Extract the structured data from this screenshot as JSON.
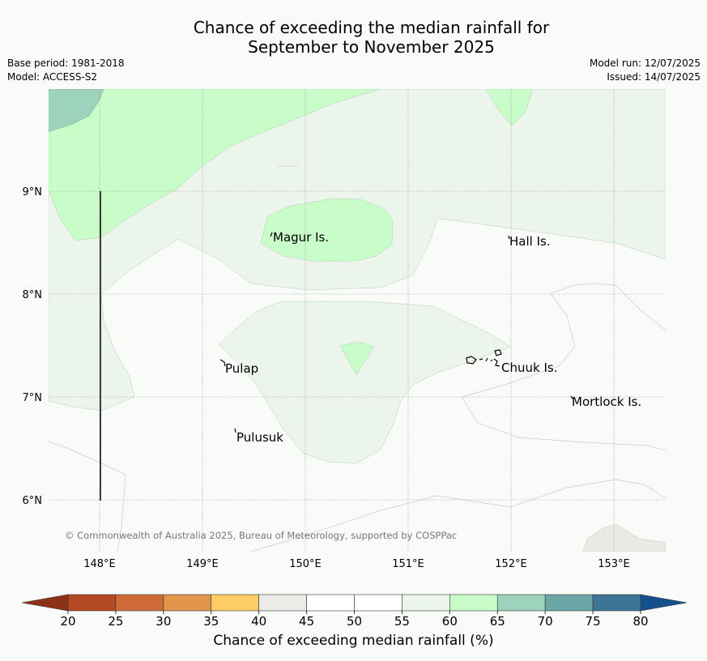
{
  "header": {
    "title_line1": "Chance of exceeding the median rainfall for",
    "title_line2": "September to November 2025",
    "base_period": "Base period: 1981-2018",
    "model": "Model: ACCESS-S2",
    "model_run": "Model run: 12/07/2025",
    "issued": "Issued: 14/07/2025"
  },
  "map": {
    "lon_labels": [
      "148°E",
      "149°E",
      "150°E",
      "151°E",
      "152°E",
      "153°E"
    ],
    "lat_labels": [
      "9°N",
      "8°N",
      "7°N",
      "6°N"
    ],
    "places": [
      {
        "name": "Magur Is."
      },
      {
        "name": "Hall Is."
      },
      {
        "name": "Pulap"
      },
      {
        "name": "Chuuk Is."
      },
      {
        "name": "Mortlock Is."
      },
      {
        "name": "Pulusuk"
      }
    ],
    "copyright": "© Commonwealth of Australia 2025, Bureau of Meteorology, supported by COSPPac"
  },
  "colorbar": {
    "title": "Chance of exceeding median rainfall (%)",
    "ticks": [
      "20",
      "25",
      "30",
      "35",
      "40",
      "45",
      "50",
      "55",
      "60",
      "65",
      "70",
      "75",
      "80"
    ],
    "colors": [
      "#b34a24",
      "#cf6b36",
      "#e2964c",
      "#fdcd66",
      "#ebebe8",
      "#ffffff",
      "#ffffff",
      "#ebf5eb",
      "#c8fcc8",
      "#9dd3bc",
      "#6ca6a6",
      "#3c7596"
    ],
    "under_color": "#8c3018",
    "over_color": "#14518c"
  }
}
